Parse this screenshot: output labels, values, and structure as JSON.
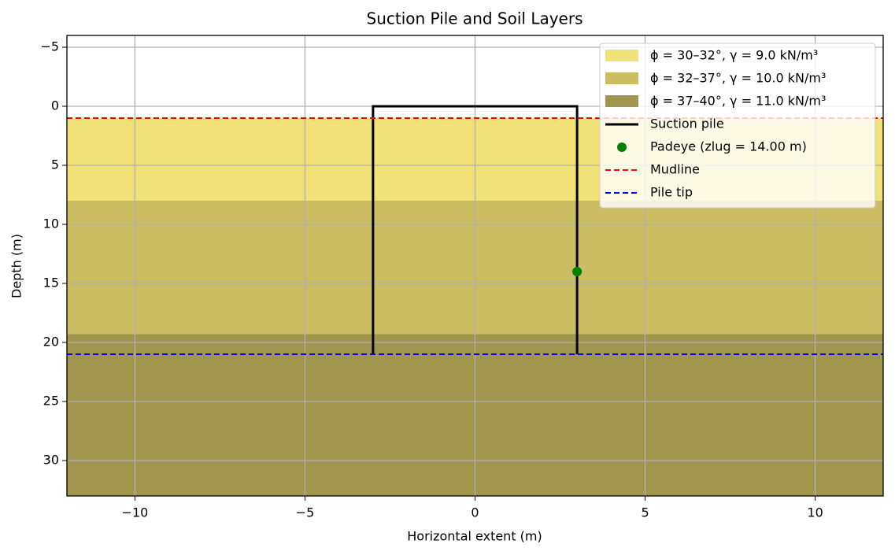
{
  "chart_data": {
    "type": "profile",
    "title": "Suction Pile and Soil Layers",
    "x_label": "Horizontal extent (m)",
    "y_label": "Depth (m)",
    "xlim": [
      -12,
      12
    ],
    "ylim": [
      -6,
      33
    ],
    "y_inverted": true,
    "xticks": [
      {
        "value": -10,
        "label": "−10"
      },
      {
        "value": -5,
        "label": "−5"
      },
      0,
      5,
      10
    ],
    "yticks": [
      {
        "value": -5,
        "label": "−5"
      },
      0,
      5,
      10,
      15,
      20,
      25,
      30
    ],
    "grid": true,
    "legend": "upper right",
    "series": [
      {
        "name": "ϕ = 30–32°, γ = 9.0 kN/m³",
        "kind": "band",
        "color": "#f0e277",
        "values": [
          1,
          8
        ]
      },
      {
        "name": "ϕ = 32–37°, γ = 10.0 kN/m³",
        "kind": "band",
        "color": "#cbbe62",
        "values": [
          8,
          19.3
        ]
      },
      {
        "name": "ϕ = 37–40°, γ = 11.0 kN/m³",
        "kind": "band",
        "color": "#a0964e",
        "values": [
          19.3,
          33
        ]
      },
      {
        "name": "Suction pile",
        "kind": "line",
        "color": "#000000",
        "x": [
          -3,
          -3,
          3,
          3
        ],
        "values": [
          21,
          0,
          0,
          21
        ]
      },
      {
        "name": "Padeye (zlug = 14.00 m)",
        "kind": "point",
        "color": "#008000",
        "x": [
          3
        ],
        "values": [
          14
        ]
      },
      {
        "name": "Mudline",
        "kind": "hline",
        "color": "#ff0000",
        "values": [
          1
        ]
      },
      {
        "name": "Pile tip",
        "kind": "hline",
        "color": "#0000ff",
        "values": [
          21
        ]
      }
    ]
  }
}
